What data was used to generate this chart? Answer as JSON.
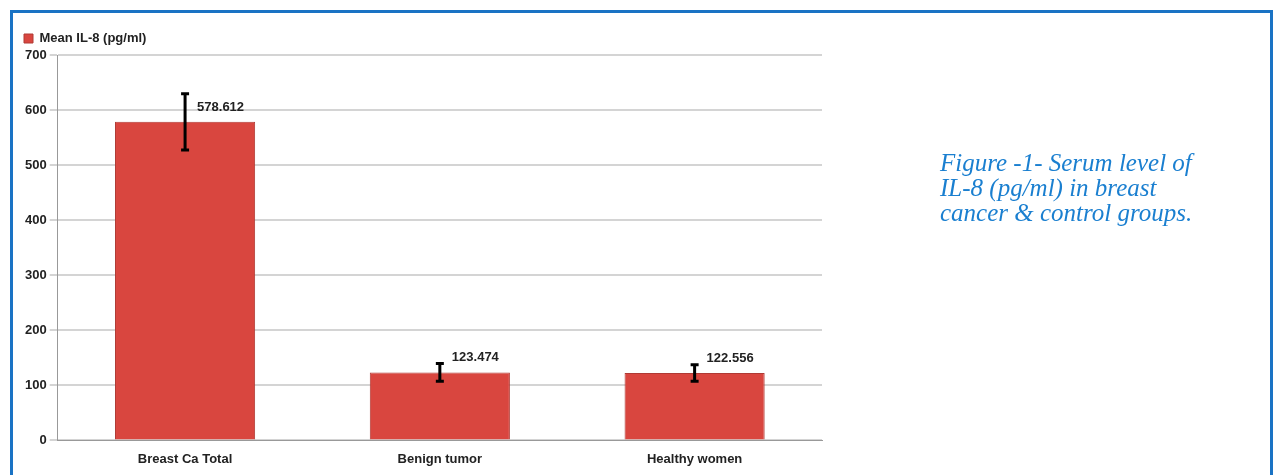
{
  "chart_data": {
    "type": "bar",
    "categories": [
      "Breast Ca Total",
      "Benign tumor",
      "Healthy women"
    ],
    "series": [
      {
        "name": "Mean IL-8 (pg/ml)",
        "color": "#d9463f",
        "values": [
          578.612,
          123.474,
          122.556
        ],
        "errors": [
          51,
          16,
          15
        ]
      }
    ],
    "ylim": [
      0,
      700
    ],
    "yticks": [
      0,
      100,
      200,
      300,
      400,
      500,
      600,
      700
    ],
    "grid": "y",
    "legend": "top left",
    "data_labels": true,
    "annotations": [
      "Figure -1- Serum level of IL-8 (pg/ml) in breast cancer & control groups."
    ]
  }
}
